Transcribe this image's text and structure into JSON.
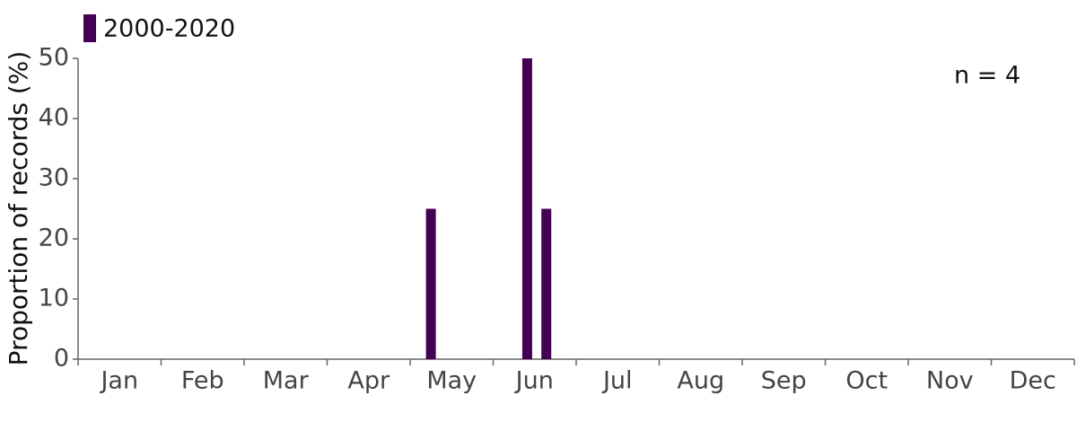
{
  "chart_data": {
    "type": "bar",
    "y_label": "Proportion of records (%)",
    "annotation": "n = 4",
    "categories": [
      "Jan",
      "Feb",
      "Mar",
      "Apr",
      "May",
      "Jun",
      "Jul",
      "Aug",
      "Sep",
      "Oct",
      "Nov",
      "Dec"
    ],
    "xlim": [
      0,
      12
    ],
    "series": [
      {
        "name": "2000-2020",
        "color": "#440154",
        "x": [
          4.25,
          5.41,
          5.64
        ],
        "values": [
          25,
          50,
          25
        ]
      }
    ],
    "ylim": [
      0,
      50
    ],
    "yticks": [
      0,
      10,
      20,
      30,
      40,
      50
    ]
  }
}
